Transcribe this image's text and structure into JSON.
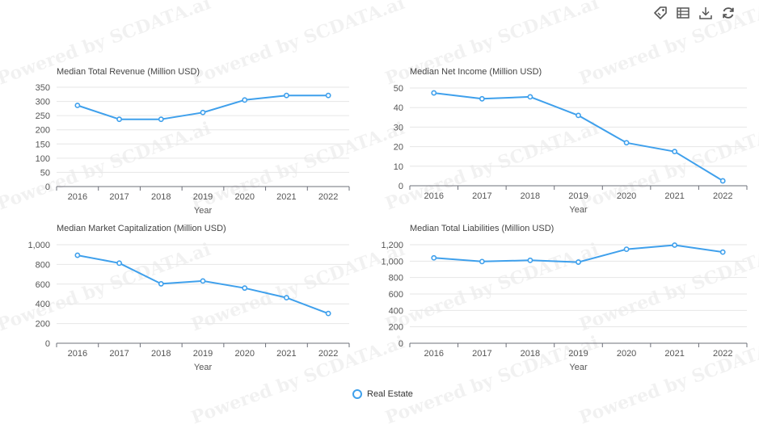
{
  "watermark_text": "Powered by SCDATA.ai",
  "toolbar": [
    {
      "name": "tag-icon"
    },
    {
      "name": "data-view-icon"
    },
    {
      "name": "download-icon"
    },
    {
      "name": "refresh-icon"
    }
  ],
  "legend": {
    "label": "Real Estate",
    "color": "#3fa0ec"
  },
  "chart_data": [
    {
      "type": "line",
      "title": "Median Total Revenue (Million USD)",
      "xlabel": "Year",
      "ylabel": "",
      "x": [
        "2016",
        "2017",
        "2018",
        "2019",
        "2020",
        "2021",
        "2022"
      ],
      "values": [
        286,
        237,
        237,
        261,
        305,
        321,
        321
      ],
      "ylim": [
        0,
        350
      ],
      "yticks": [
        0,
        50,
        100,
        150,
        200,
        250,
        300,
        350
      ],
      "ytick_labels": [
        "0",
        "50",
        "100",
        "150",
        "200",
        "250",
        "300",
        "350"
      ],
      "grid": true
    },
    {
      "type": "line",
      "title": "Median Net Income (Million USD)",
      "xlabel": "Year",
      "ylabel": "",
      "x": [
        "2016",
        "2017",
        "2018",
        "2019",
        "2020",
        "2021",
        "2022"
      ],
      "values": [
        47.5,
        44.5,
        45.5,
        36,
        22,
        17.5,
        2.5
      ],
      "ylim": [
        0,
        50
      ],
      "yticks": [
        0,
        10,
        20,
        30,
        40,
        50
      ],
      "ytick_labels": [
        "0",
        "10",
        "20",
        "30",
        "40",
        "50"
      ],
      "grid": true
    },
    {
      "type": "line",
      "title": "Median Market Capitalization (Million USD)",
      "xlabel": "Year",
      "ylabel": "",
      "x": [
        "2016",
        "2017",
        "2018",
        "2019",
        "2020",
        "2021",
        "2022"
      ],
      "values": [
        893,
        813,
        603,
        632,
        560,
        462,
        302
      ],
      "ylim": [
        0,
        1000
      ],
      "yticks": [
        0,
        200,
        400,
        600,
        800,
        1000
      ],
      "ytick_labels": [
        "0",
        "200",
        "400",
        "600",
        "800",
        "1,000"
      ],
      "grid": true
    },
    {
      "type": "line",
      "title": "Median Total Liabilities (Million USD)",
      "xlabel": "Year",
      "ylabel": "",
      "x": [
        "2016",
        "2017",
        "2018",
        "2019",
        "2020",
        "2021",
        "2022"
      ],
      "values": [
        1040,
        995,
        1010,
        988,
        1145,
        1195,
        1110
      ],
      "ylim": [
        0,
        1200
      ],
      "yticks": [
        0,
        200,
        400,
        600,
        800,
        1000,
        1200
      ],
      "ytick_labels": [
        "0",
        "200",
        "400",
        "600",
        "800",
        "1,000",
        "1,200"
      ],
      "grid": true
    }
  ]
}
